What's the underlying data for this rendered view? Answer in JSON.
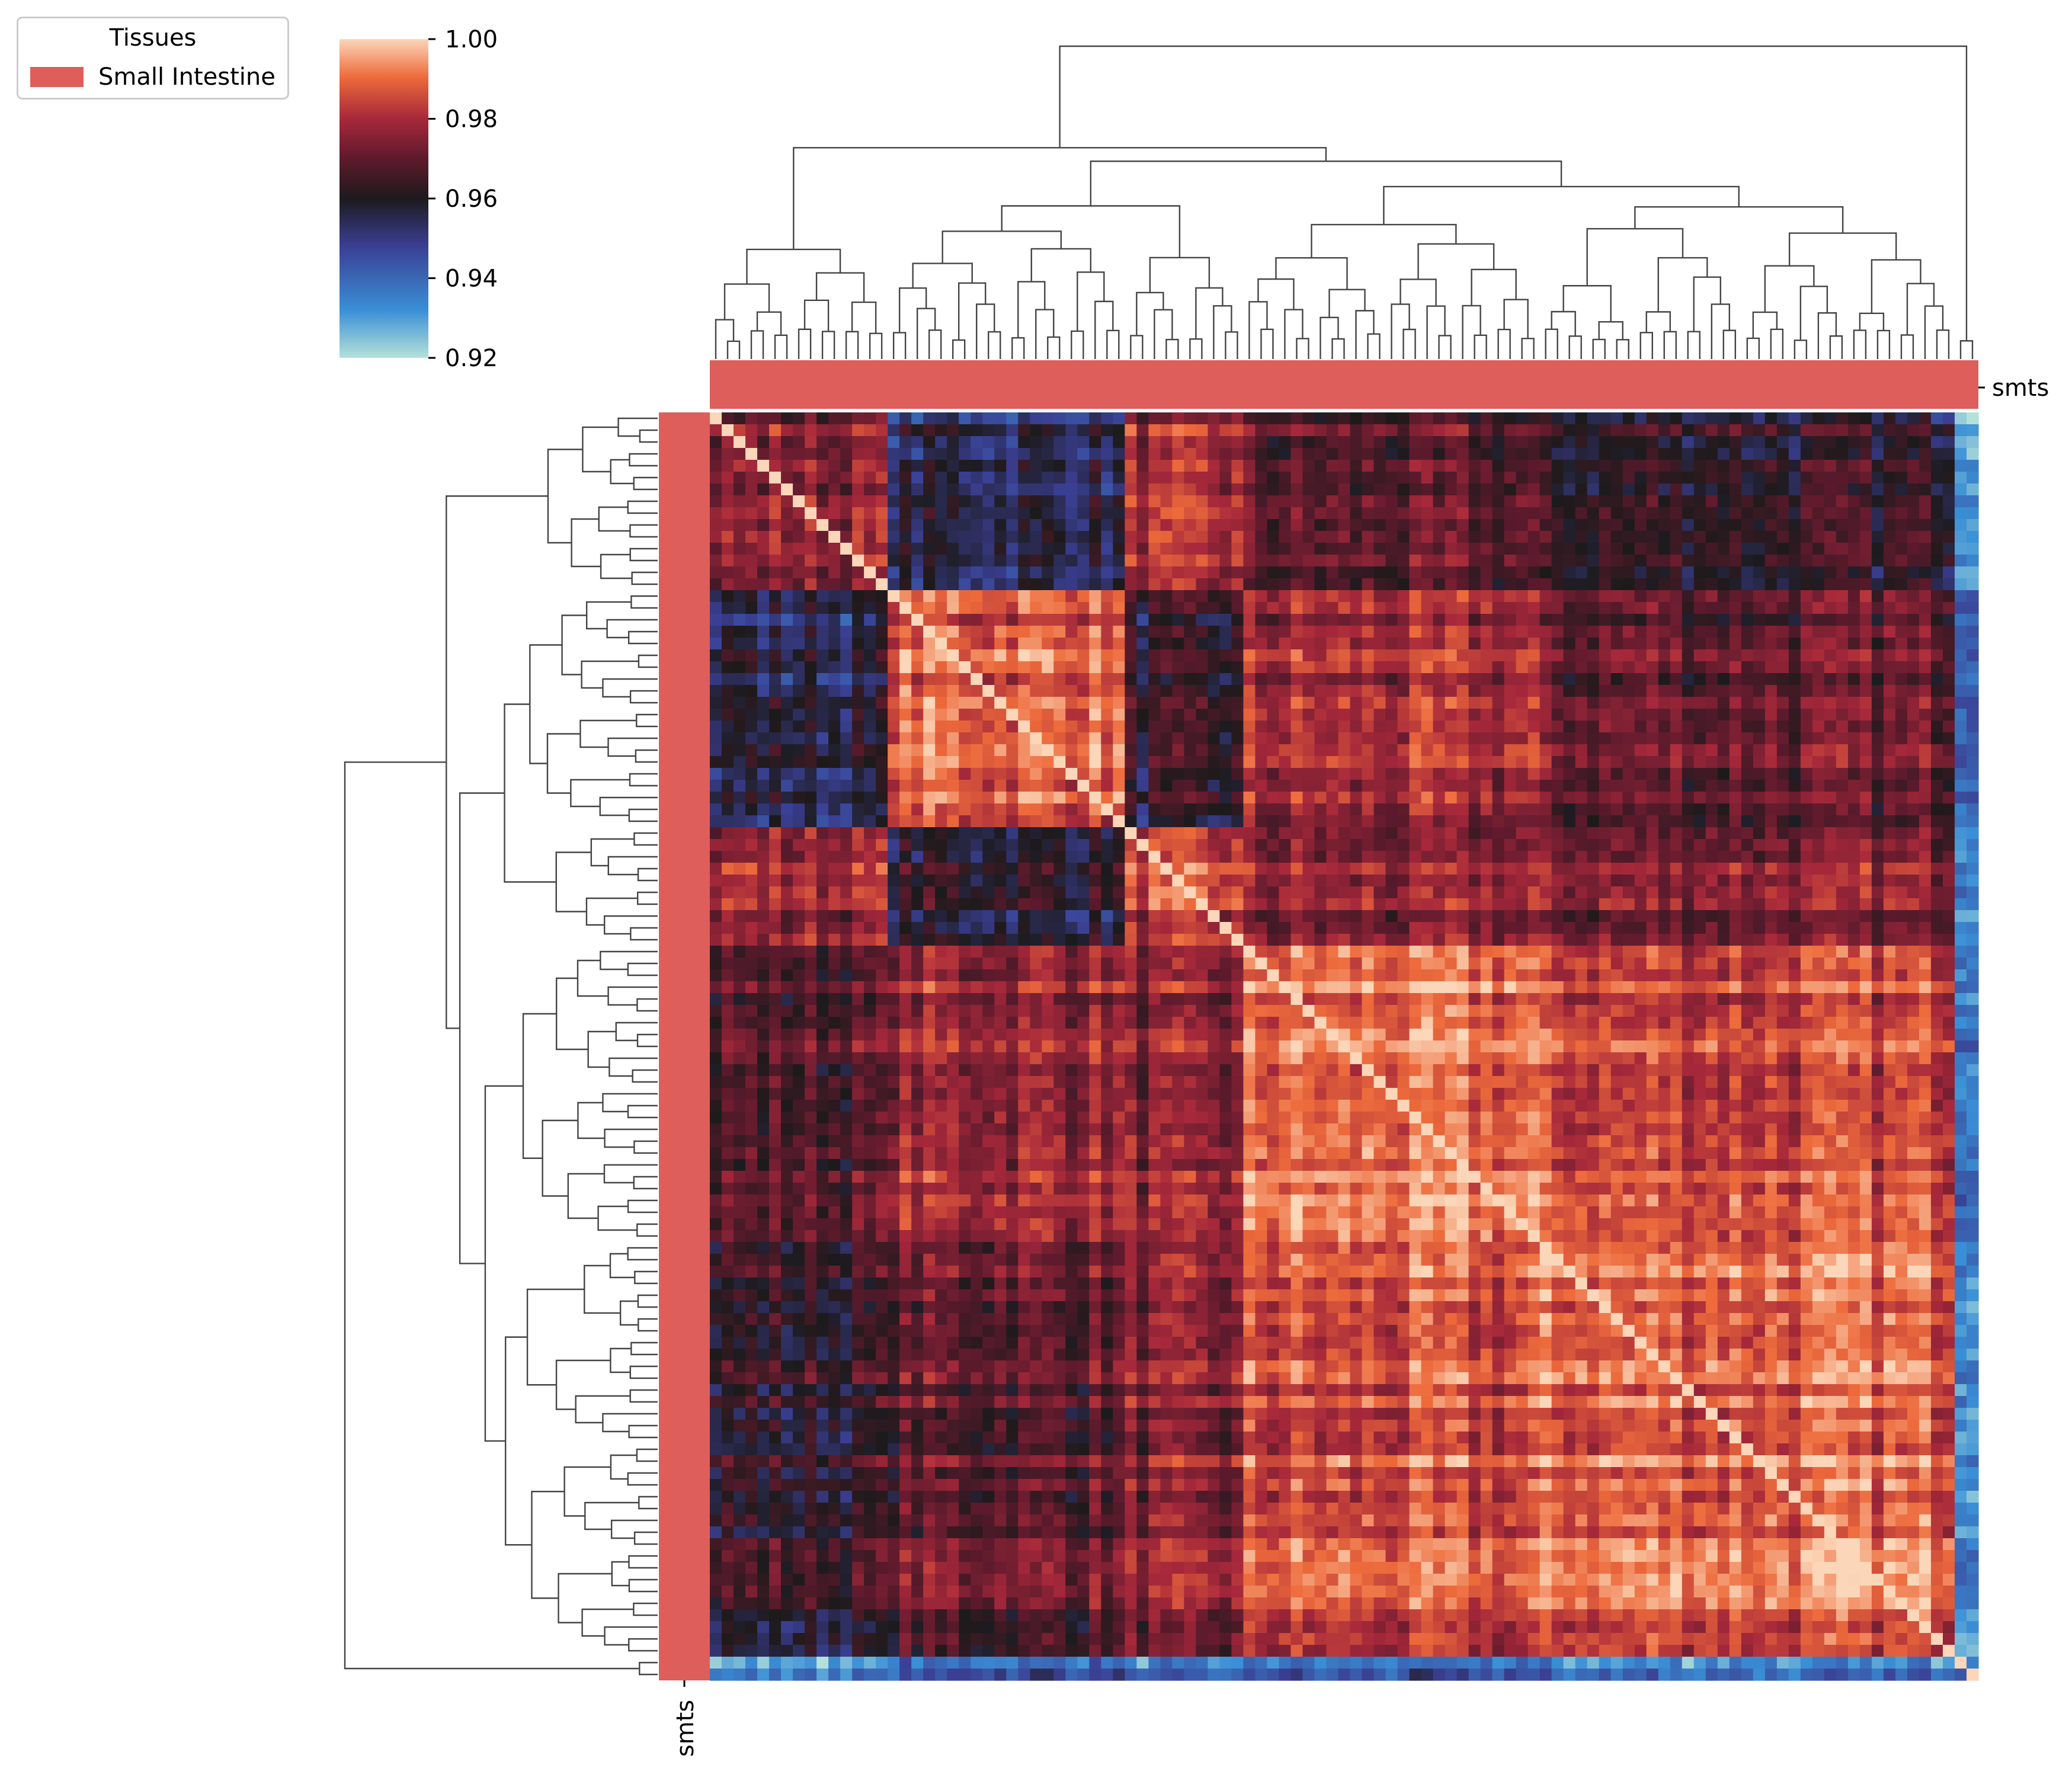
{
  "chart_data": {
    "type": "heatmap",
    "variant": "clustermap",
    "n_samples": 107,
    "colormap": "icefire",
    "colorbar": {
      "min": 0.92,
      "max": 1.0,
      "ticks": [
        "1.00",
        "0.98",
        "0.96",
        "0.94",
        "0.92"
      ],
      "tick_values": [
        1.0,
        0.98,
        0.96,
        0.94,
        0.92
      ]
    },
    "row_colors_label": "smts",
    "col_colors_label": "smts",
    "annotation_color": "#dd5e5a",
    "legend": {
      "title": "Tissues",
      "placement": "top-left",
      "entries": [
        {
          "label": "Small Intestine",
          "color": "#dd5e5a"
        }
      ]
    },
    "clusters": [
      {
        "size": 15,
        "within": 0.975
      },
      {
        "size": 20,
        "within": 0.988
      },
      {
        "size": 10,
        "within": 0.982
      },
      {
        "size": 25,
        "within": 0.99
      },
      {
        "size": 35,
        "within": 0.989
      },
      {
        "size": 2,
        "within": 0.95
      }
    ],
    "cluster_similarity": [
      [
        0.975,
        0.955,
        0.978,
        0.968,
        0.962,
        0.935
      ],
      [
        0.955,
        0.988,
        0.96,
        0.978,
        0.97,
        0.945
      ],
      [
        0.978,
        0.96,
        0.982,
        0.975,
        0.974,
        0.94
      ],
      [
        0.968,
        0.978,
        0.975,
        0.99,
        0.985,
        0.943
      ],
      [
        0.962,
        0.97,
        0.974,
        0.985,
        0.989,
        0.938
      ],
      [
        0.935,
        0.945,
        0.94,
        0.943,
        0.938,
        0.95
      ]
    ],
    "diagonal": 1.0,
    "xlabel": "",
    "ylabel": "",
    "title": ""
  }
}
